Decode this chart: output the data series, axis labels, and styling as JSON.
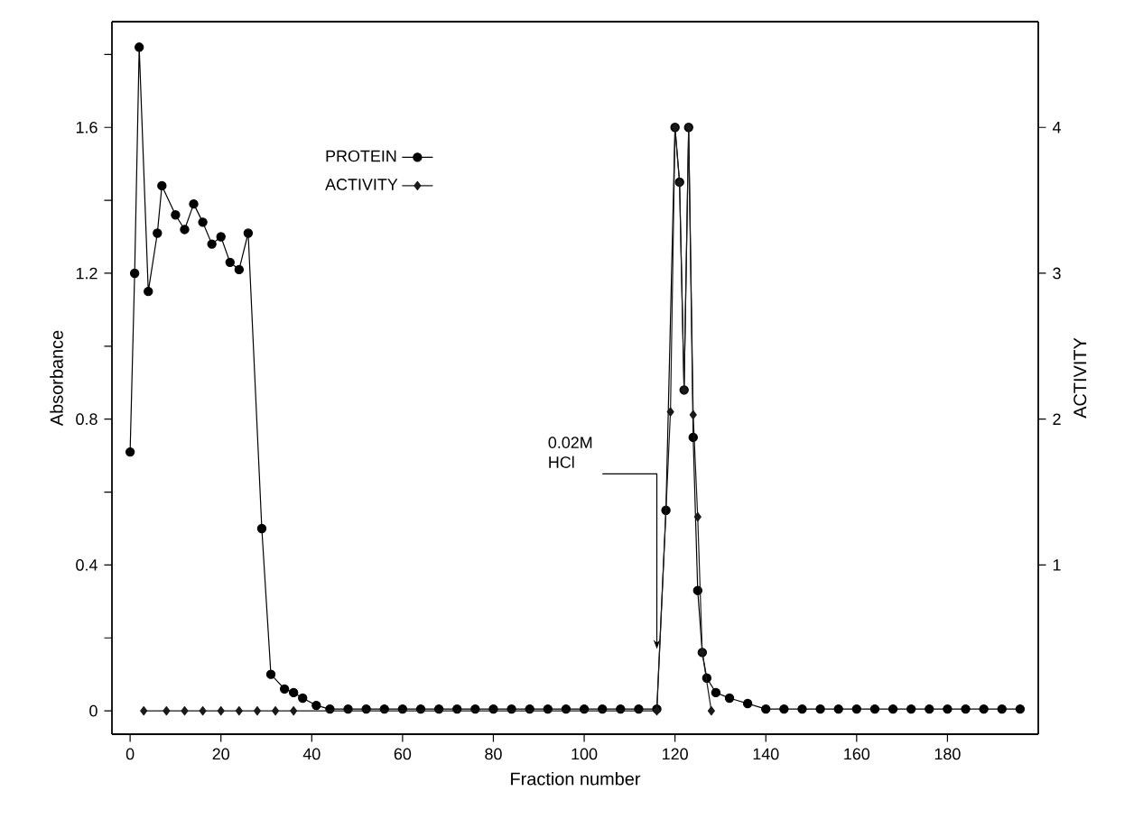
{
  "chart_data": {
    "type": "line",
    "xlabel": "Fraction number",
    "ylabel": "Absorbance",
    "y2label": "ACTIVITY",
    "xlim": [
      -4,
      200
    ],
    "ylim": [
      -0.064,
      1.89
    ],
    "y2lim": [
      -0.16,
      4.725
    ],
    "xticks": [
      0,
      20,
      40,
      60,
      80,
      100,
      120,
      140,
      160,
      180
    ],
    "yticks": [
      0,
      {
        "value": 0.2,
        "label": null
      },
      0.4,
      {
        "value": 0.6,
        "label": null
      },
      0.8,
      {
        "value": 1.0,
        "label": null
      },
      1.2,
      {
        "value": 1.4,
        "label": null
      },
      1.6,
      {
        "value": 1.8,
        "label": null
      }
    ],
    "y2ticks": [
      1,
      2,
      3,
      4
    ],
    "legend": "top left",
    "grid": false,
    "series": [
      {
        "name": "PROTEIN",
        "color": "#000000",
        "marker": "circle",
        "x": [
          0,
          1,
          2,
          4,
          6,
          7,
          10,
          12,
          14,
          16,
          18,
          20,
          22,
          24,
          26,
          29,
          31,
          34,
          36,
          38,
          41,
          44,
          48,
          52,
          56,
          60,
          64,
          68,
          72,
          76,
          80,
          84,
          88,
          92,
          96,
          100,
          104,
          108,
          112,
          116,
          118,
          120,
          121,
          122,
          123,
          124,
          125,
          126,
          127,
          129,
          132,
          136,
          140,
          144,
          148,
          152,
          156,
          160,
          164,
          168,
          172,
          176,
          180,
          184,
          188,
          192,
          196
        ],
        "values": [
          0.71,
          1.2,
          1.82,
          1.15,
          1.31,
          1.44,
          1.36,
          1.32,
          1.39,
          1.34,
          1.28,
          1.3,
          1.23,
          1.21,
          1.31,
          0.5,
          0.1,
          0.06,
          0.05,
          0.035,
          0.015,
          0.005,
          0.005,
          0.005,
          0.005,
          0.005,
          0.005,
          0.005,
          0.005,
          0.005,
          0.005,
          0.005,
          0.005,
          0.005,
          0.005,
          0.005,
          0.005,
          0.005,
          0.005,
          0.005,
          0.55,
          1.6,
          1.45,
          0.88,
          1.6,
          0.75,
          0.33,
          0.16,
          0.09,
          0.05,
          0.035,
          0.02,
          0.005,
          0.005,
          0.005,
          0.005,
          0.005,
          0.005,
          0.005,
          0.005,
          0.005,
          0.005,
          0.005,
          0.005,
          0.005,
          0.005,
          0.005
        ]
      },
      {
        "name": "ACTIVITY",
        "color": "#1a1a1a",
        "marker": "diamond",
        "axis": "y2",
        "x": [
          3,
          8,
          12,
          16,
          20,
          24,
          28,
          32,
          36,
          116,
          119,
          120,
          121,
          122,
          123,
          124,
          125,
          126,
          128
        ],
        "values": [
          0,
          0,
          0,
          0,
          0,
          0,
          0,
          0,
          0,
          0,
          2.05,
          4.0,
          3.62,
          2.2,
          4.0,
          2.03,
          1.33,
          0.4,
          0
        ]
      }
    ],
    "annotations": [
      {
        "text": "0.02M HCl",
        "x": 116,
        "y": 0.17
      }
    ]
  }
}
